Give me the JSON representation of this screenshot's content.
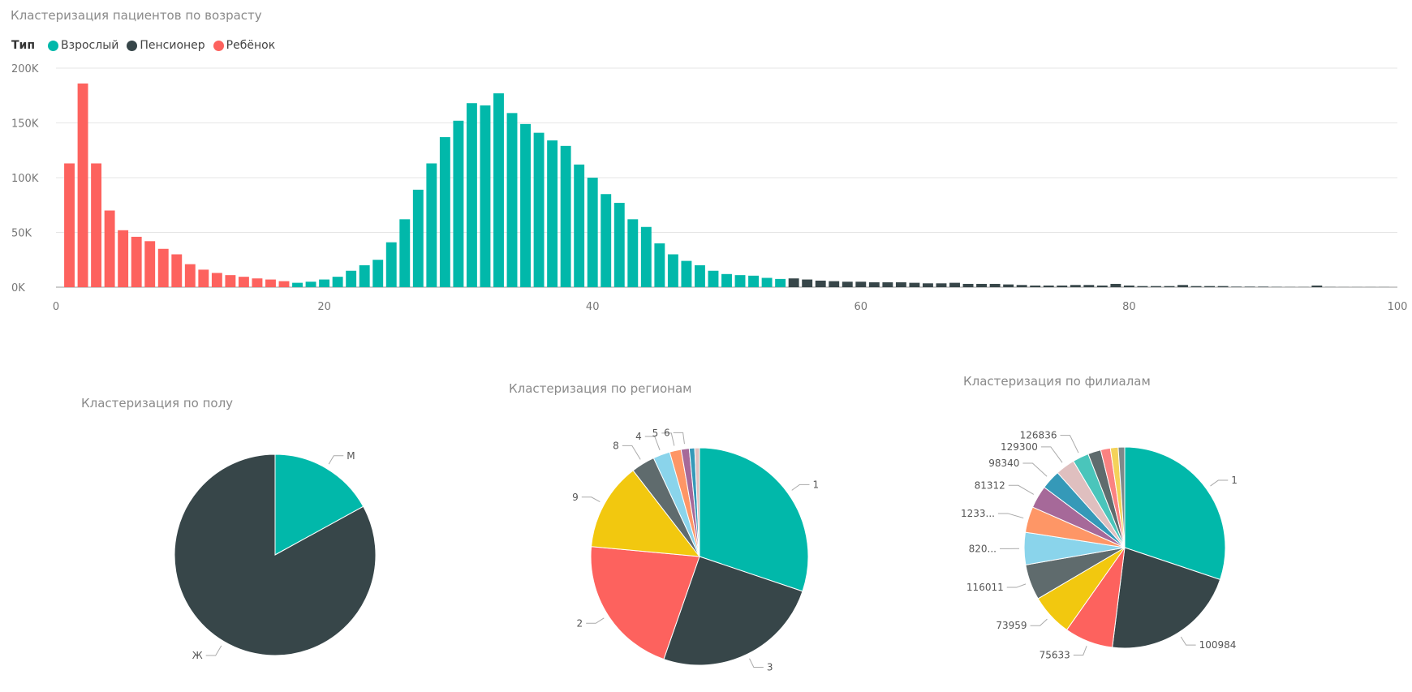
{
  "histogram": {
    "title": "Кластеризация пациентов по возрасту",
    "legend_title": "Тип",
    "legend": [
      {
        "name": "Взрослый",
        "color": "#01B8AA"
      },
      {
        "name": "Пенсионер",
        "color": "#374649"
      },
      {
        "name": "Ребёнок",
        "color": "#FD625E"
      }
    ],
    "yticks": [
      "200K",
      "150K",
      "100K",
      "50K",
      "0K"
    ],
    "xticks": [
      "0",
      "20",
      "40",
      "60",
      "80",
      "100"
    ]
  },
  "chart_data": [
    {
      "type": "bar",
      "title": "Кластеризация пациентов по возрасту",
      "xlabel": "",
      "ylabel": "",
      "xlim": [
        0,
        100
      ],
      "ylim": [
        0,
        200000
      ],
      "grid": true,
      "legend_position": "top-left",
      "series": [
        {
          "name": "Ребёнок",
          "color": "#FD625E",
          "x": [
            1,
            2,
            3,
            4,
            5,
            6,
            7,
            8,
            9,
            10,
            11,
            12,
            13,
            14,
            15,
            16,
            17
          ],
          "values": [
            113000,
            186000,
            113000,
            70000,
            52000,
            46000,
            42000,
            35000,
            30000,
            21000,
            16000,
            13000,
            11000,
            9500,
            8000,
            7000,
            5500
          ]
        },
        {
          "name": "Взрослый",
          "color": "#01B8AA",
          "x": [
            18,
            19,
            20,
            21,
            22,
            23,
            24,
            25,
            26,
            27,
            28,
            29,
            30,
            31,
            32,
            33,
            34,
            35,
            36,
            37,
            38,
            39,
            40,
            41,
            42,
            43,
            44,
            45,
            46,
            47,
            48,
            49,
            50,
            51,
            52,
            53,
            54
          ],
          "values": [
            4000,
            5000,
            7000,
            9500,
            15000,
            20000,
            25000,
            41000,
            62000,
            89000,
            113000,
            137000,
            152000,
            168000,
            166000,
            177000,
            159000,
            149000,
            141000,
            134000,
            129000,
            112000,
            100000,
            85000,
            77000,
            62000,
            55000,
            40000,
            30000,
            24000,
            20000,
            15000,
            12000,
            11000,
            10500,
            8500,
            7500
          ]
        },
        {
          "name": "Пенсионер",
          "color": "#374649",
          "x": [
            55,
            56,
            57,
            58,
            59,
            60,
            61,
            62,
            63,
            64,
            65,
            66,
            67,
            68,
            69,
            70,
            71,
            72,
            73,
            74,
            75,
            76,
            77,
            78,
            79,
            80,
            81,
            82,
            83,
            84,
            85,
            86,
            87,
            88,
            89,
            90,
            91,
            92,
            93,
            94,
            95,
            96,
            97,
            98,
            99
          ],
          "values": [
            8000,
            7000,
            6000,
            5500,
            5000,
            5000,
            4500,
            4500,
            4500,
            4000,
            3500,
            3500,
            4000,
            3000,
            3000,
            3000,
            2500,
            2000,
            1500,
            1500,
            1500,
            2000,
            2000,
            1500,
            3000,
            1500,
            1000,
            1000,
            1000,
            2000,
            1000,
            1000,
            1000,
            500,
            500,
            500,
            300,
            200,
            200,
            1500,
            200,
            100,
            100,
            100,
            100
          ]
        }
      ]
    },
    {
      "type": "pie",
      "title": "Кластеризация по полу",
      "labels": [
        "М",
        "Ж"
      ],
      "values": [
        17,
        83
      ],
      "colors": [
        "#01B8AA",
        "#374649"
      ]
    },
    {
      "type": "pie",
      "title": "Кластеризация по регионам",
      "labels": [
        "1",
        "3",
        "2",
        "9",
        "8",
        "4",
        "5",
        "6",
        "",
        ""
      ],
      "values": [
        30,
        25,
        21,
        13,
        3.5,
        2.5,
        1.7,
        1.2,
        0.8,
        0.7
      ],
      "colors": [
        "#01B8AA",
        "#374649",
        "#FD625E",
        "#F2C80F",
        "#5F6B6D",
        "#8AD4EB",
        "#FE9666",
        "#A66999",
        "#3599B8",
        "#DFBFBF"
      ]
    },
    {
      "type": "pie",
      "title": "Кластеризация по филиалам",
      "labels": [
        "1",
        "100984",
        "75633",
        "73959",
        "116011",
        "820...",
        "1233...",
        "81312",
        "98340",
        "129300",
        "126836",
        "",
        "",
        "",
        ""
      ],
      "values": [
        29,
        21,
        7.5,
        6.5,
        5.5,
        5,
        4,
        3.5,
        3,
        3,
        2.5,
        2,
        1.5,
        1.2,
        1
      ],
      "colors": [
        "#01B8AA",
        "#374649",
        "#FD625E",
        "#F2C80F",
        "#5F6B6D",
        "#8AD4EB",
        "#FE9666",
        "#A66999",
        "#3599B8",
        "#DFBFBF",
        "#4AC5BB",
        "#5F6B6D",
        "#FB8281",
        "#F4D25A",
        "#7F898A"
      ]
    }
  ]
}
